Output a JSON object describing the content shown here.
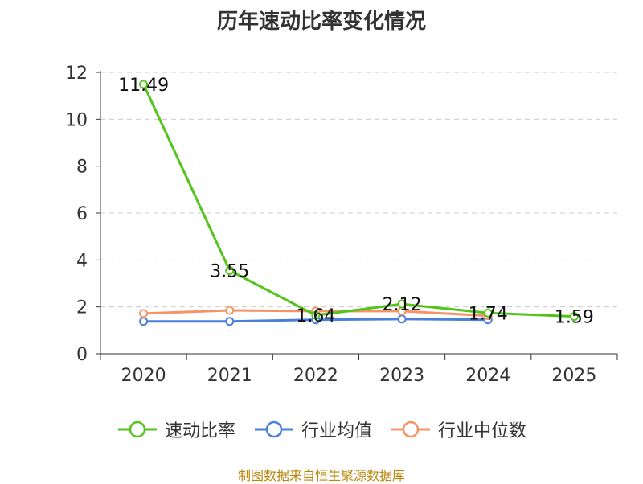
{
  "chart_data": {
    "type": "line",
    "title": "历年速动比率变化情况",
    "categories": [
      "2020",
      "2021",
      "2022",
      "2023",
      "2024",
      "2025"
    ],
    "ylim": [
      0,
      12
    ],
    "yticks": [
      "0",
      "2",
      "4",
      "6",
      "8",
      "10",
      "12"
    ],
    "grid": true,
    "legend_position": "bottom",
    "series": [
      {
        "name": "速动比率",
        "color": "#52c41a",
        "values": [
          11.49,
          3.55,
          1.64,
          2.12,
          1.74,
          1.59
        ],
        "labels": [
          "11.49",
          "3.55",
          "1.64",
          "2.12",
          "1.74",
          "1.59"
        ]
      },
      {
        "name": "行业均值",
        "color": "#4a7fdc",
        "values": [
          1.38,
          1.38,
          1.45,
          1.48,
          1.45,
          null
        ]
      },
      {
        "name": "行业中位数",
        "color": "#f59466",
        "values": [
          1.72,
          1.85,
          1.82,
          1.82,
          1.62,
          null
        ]
      }
    ]
  },
  "source": "制图数据来自恒生聚源数据库"
}
